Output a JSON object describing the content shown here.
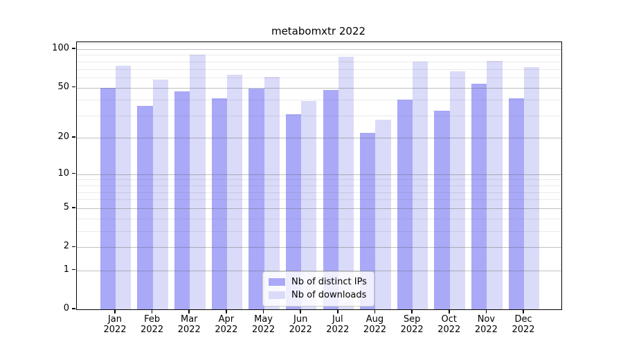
{
  "title": "metabomxtr 2022",
  "chart_data": {
    "type": "bar",
    "title": "metabomxtr 2022",
    "categories": [
      "Jan 2022",
      "Feb 2022",
      "Mar 2022",
      "Apr 2022",
      "May 2022",
      "Jun 2022",
      "Jul 2022",
      "Aug 2022",
      "Sep 2022",
      "Oct 2022",
      "Nov 2022",
      "Dec 2022"
    ],
    "series": [
      {
        "name": "Nb of distinct IPs",
        "color": "#a9a9f8",
        "values": [
          50,
          36,
          47,
          41,
          49,
          31,
          48,
          22,
          40,
          33,
          54,
          41
        ]
      },
      {
        "name": "Nb of downloads",
        "color": "#dadaf9",
        "values": [
          74,
          58,
          90,
          63,
          61,
          39,
          87,
          28,
          80,
          67,
          81,
          72
        ]
      }
    ],
    "yscale": "log1p",
    "ylim": [
      0,
      113
    ],
    "yticks": [
      0,
      1,
      2,
      5,
      10,
      20,
      50,
      100
    ],
    "minor_gridlines": [
      3,
      4,
      6,
      7,
      8,
      9,
      30,
      40,
      60,
      70,
      80,
      90,
      110
    ],
    "grid": true,
    "legend_position": "lower center",
    "xlabel": "",
    "ylabel": ""
  }
}
